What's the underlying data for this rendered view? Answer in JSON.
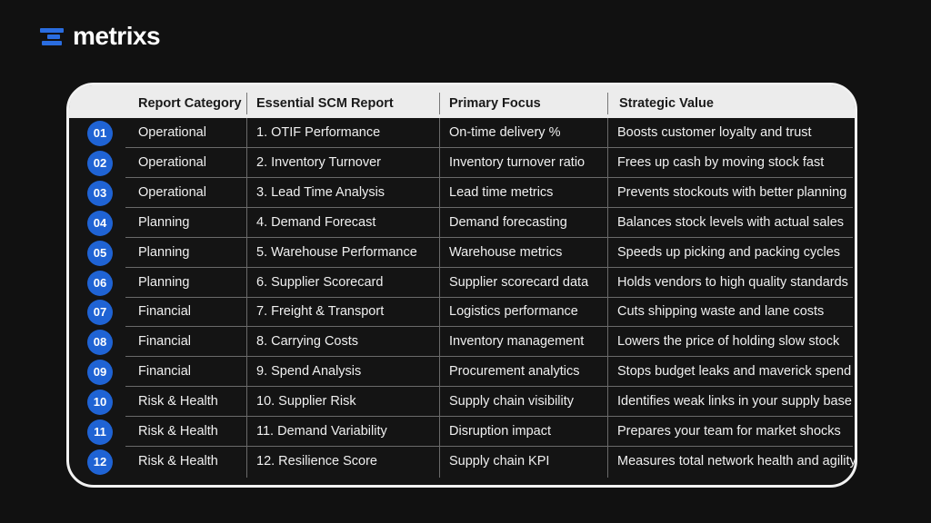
{
  "brand": {
    "name": "metrixs",
    "mark_color": "#2a6de0",
    "icon": "stacked-bars-logo-icon"
  },
  "table": {
    "headers": [
      "Report Category",
      "Essential SCM Report",
      "Primary Focus",
      "Strategic Value"
    ],
    "badge_color": "#1f63d4",
    "rows": [
      {
        "num": "01",
        "category": "Operational",
        "report": "1. OTIF Performance",
        "focus": "On-time delivery %",
        "value": "Boosts customer loyalty and trust"
      },
      {
        "num": "02",
        "category": "Operational",
        "report": "2. Inventory Turnover",
        "focus": "Inventory turnover ratio",
        "value": "Frees up cash by moving stock fast"
      },
      {
        "num": "03",
        "category": "Operational",
        "report": "3. Lead Time Analysis",
        "focus": "Lead time metrics",
        "value": "Prevents stockouts with better planning"
      },
      {
        "num": "04",
        "category": "Planning",
        "report": "4. Demand Forecast",
        "focus": "Demand forecasting",
        "value": "Balances stock levels with actual sales"
      },
      {
        "num": "05",
        "category": "Planning",
        "report": "5. Warehouse Performance",
        "focus": "Warehouse metrics",
        "value": "Speeds up picking and packing cycles"
      },
      {
        "num": "06",
        "category": "Planning",
        "report": "6. Supplier Scorecard",
        "focus": "Supplier scorecard data",
        "value": "Holds vendors to high quality standards"
      },
      {
        "num": "07",
        "category": "Financial",
        "report": "7. Freight & Transport",
        "focus": "Logistics performance",
        "value": "Cuts shipping waste and lane costs"
      },
      {
        "num": "08",
        "category": "Financial",
        "report": "8. Carrying Costs",
        "focus": "Inventory management",
        "value": "Lowers the price of holding slow stock"
      },
      {
        "num": "09",
        "category": "Financial",
        "report": "9. Spend Analysis",
        "focus": "Procurement analytics",
        "value": "Stops budget leaks and maverick spend"
      },
      {
        "num": "10",
        "category": "Risk & Health",
        "report": "10. Supplier Risk",
        "focus": "Supply chain visibility",
        "value": "Identifies weak links in your supply base"
      },
      {
        "num": "11",
        "category": "Risk & Health",
        "report": "11. Demand Variability",
        "focus": "Disruption impact",
        "value": "Prepares your team for market shocks"
      },
      {
        "num": "12",
        "category": "Risk & Health",
        "report": "12. Resilience Score",
        "focus": "Supply chain KPI",
        "value": "Measures total network health and agility"
      }
    ]
  }
}
